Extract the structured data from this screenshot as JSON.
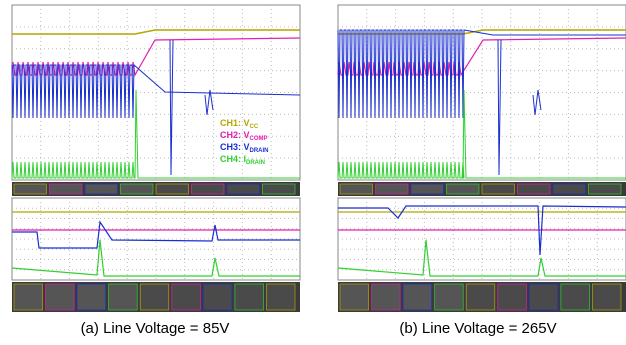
{
  "captions": [
    "(a) Line Voltage = 85V",
    "(b) Line Voltage = 265V"
  ],
  "legend": [
    {
      "label": "CH1: V",
      "sub": "CC"
    },
    {
      "label": "CH2: V",
      "sub": "COMP"
    },
    {
      "label": "CH3: V",
      "sub": "DRAIN"
    },
    {
      "label": "CH4: I",
      "sub": "DRAIN"
    }
  ]
}
